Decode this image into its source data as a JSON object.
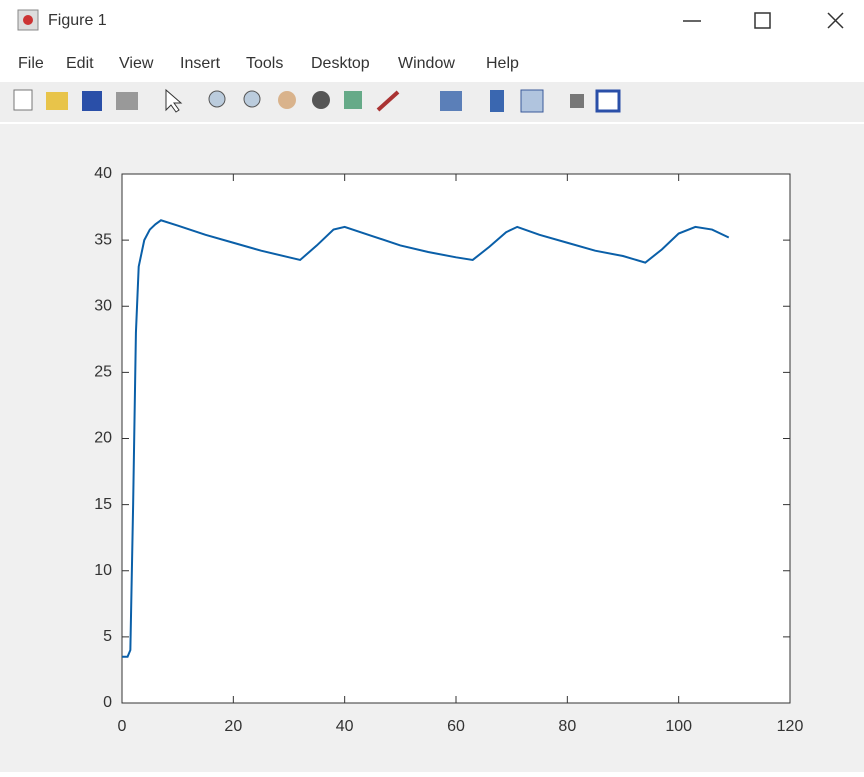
{
  "window": {
    "title": "Figure 1"
  },
  "menu": {
    "items": [
      "File",
      "Edit",
      "View",
      "Insert",
      "Tools",
      "Desktop",
      "Window",
      "Help"
    ]
  },
  "chart_data": {
    "type": "line",
    "x": [
      0,
      1,
      1.5,
      2,
      2.5,
      3,
      4,
      5,
      6,
      7,
      10,
      15,
      20,
      25,
      30,
      32,
      35,
      38,
      40,
      45,
      50,
      55,
      60,
      63,
      66,
      69,
      71,
      75,
      80,
      85,
      90,
      94,
      97,
      100,
      103,
      106,
      109
    ],
    "values": [
      3.5,
      3.5,
      4,
      15,
      28,
      33,
      35,
      35.8,
      36.2,
      36.5,
      36.1,
      35.4,
      34.8,
      34.2,
      33.7,
      33.5,
      34.6,
      35.8,
      36,
      35.3,
      34.6,
      34.1,
      33.7,
      33.5,
      34.5,
      35.6,
      36,
      35.4,
      34.8,
      34.2,
      33.8,
      33.3,
      34.3,
      35.5,
      36,
      35.8,
      35.2
    ],
    "color": "#0a5fa8",
    "xlim": [
      0,
      120
    ],
    "ylim": [
      0,
      40
    ],
    "xticks": [
      0,
      20,
      40,
      60,
      80,
      100,
      120
    ],
    "yticks": [
      0,
      5,
      10,
      15,
      20,
      25,
      30,
      35,
      40
    ],
    "grid": false
  }
}
